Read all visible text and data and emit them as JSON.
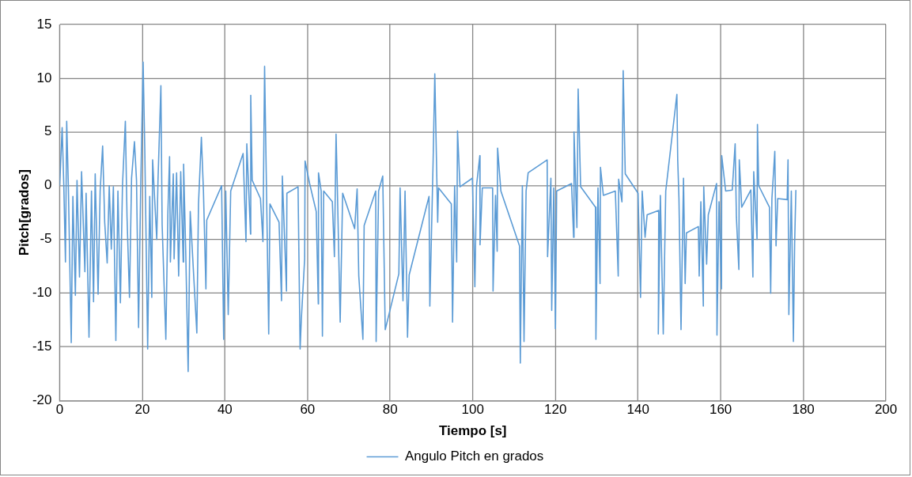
{
  "chart_data": {
    "type": "line",
    "xlabel": "Tiempo [s]",
    "ylabel": "Pitch[grados]",
    "xlim": [
      0,
      200
    ],
    "xticks": [
      0,
      20,
      40,
      60,
      80,
      100,
      120,
      140,
      160,
      180,
      200
    ],
    "ylim": [
      -20,
      15
    ],
    "yticks": [
      -20,
      -15,
      -10,
      -5,
      0,
      5,
      10,
      15
    ],
    "grid": true,
    "legend": "bottom",
    "marker": "none",
    "line_style": "solid",
    "series": [
      {
        "name": "Angulo Pitch en grados",
        "color": "#5b9bd5",
        "x": [
          0,
          0.6,
          1,
          1.4,
          1.7,
          2.1,
          2.8,
          3.2,
          3.8,
          4.2,
          4.8,
          5.3,
          6.1,
          6.4,
          7.1,
          7.7,
          8.2,
          8.6,
          9.3,
          9.8,
          10.4,
          10.9,
          11.5,
          12,
          12.5,
          13,
          13.6,
          14.1,
          14.7,
          15.2,
          15.9,
          16.3,
          16.9,
          17.4,
          18.1,
          18.6,
          19.1,
          19.6,
          20.2,
          20.6,
          21.3,
          21.8,
          22.3,
          22.5,
          23.5,
          23.8,
          24.5,
          24.8,
          25.7,
          26.2,
          26.6,
          26.8,
          27.5,
          27.7,
          28.3,
          28.8,
          29.3,
          29.9,
          30,
          30.5,
          31.1,
          31.6,
          32.5,
          33.2,
          33.6,
          34.3,
          34.8,
          35.4,
          35.6,
          39.2,
          39.7,
          40.2,
          40.8,
          41.4,
          44.4,
          45.1,
          45.3,
          46.2,
          46.25,
          46.6,
          48.6,
          49.2,
          49.6,
          50,
          50.6,
          50.9,
          53.1,
          53.7,
          53.9,
          54.9,
          55,
          57.7,
          58.2,
          58.5,
          59.3,
          59.4,
          60.5,
          62.1,
          62.6,
          62.65,
          63.3,
          63.6,
          63.9,
          66,
          66.5,
          66.9,
          67.2,
          67.9,
          68.5,
          71.4,
          72,
          72.4,
          73.4,
          73.7,
          76.5,
          76.6,
          77.2,
          78.2,
          78.8,
          82.1,
          82.4,
          83.1,
          83.6,
          84.2,
          84.6,
          89.4,
          89.6,
          90.4,
          90.8,
          91.5,
          91.7,
          94.8,
          95.1,
          95.6,
          96.1,
          96.3,
          96.9,
          99.9,
          100.5,
          100.9,
          101.7,
          101.75,
          102.3,
          104.8,
          104.9,
          105.5,
          105.9,
          106,
          106.8,
          111.3,
          111.5,
          112,
          112.4,
          112.9,
          113.4,
          118,
          118.1,
          118.9,
          119.1,
          119.6,
          120,
          120.3,
          123.9,
          124.4,
          124.5,
          125.2,
          125.5,
          126.1,
          129.7,
          129.8,
          130.3,
          130.8,
          130.9,
          131.6,
          134.5,
          135.2,
          135.3,
          136.1,
          136.4,
          136.9,
          140,
          140.6,
          141,
          141.7,
          142.2,
          145,
          144.9,
          145.4,
          146.1,
          146.7,
          149.4,
          149.6,
          149.9,
          150.4,
          151,
          151.4,
          151.7,
          154.6,
          154.8,
          155.2,
          155.8,
          155.9,
          156.6,
          157,
          159,
          159.1,
          159.6,
          160.2,
          160.25,
          161.2,
          162.8,
          163.5,
          163.8,
          164.4,
          164.5,
          165.1,
          167.3,
          167.8,
          168,
          168.8,
          168.9,
          169.2,
          171.8,
          172.1,
          172.4,
          173.1,
          173.4,
          173.8,
          176.1,
          176.3,
          176.5,
          177.1,
          177.6,
          177.9,
          178.2
        ],
        "values": [
          0,
          5.4,
          0,
          -7.1,
          6,
          0,
          -14.6,
          -1,
          -10.2,
          0.5,
          -8.5,
          1.3,
          -8,
          -0.7,
          -14.1,
          -0.5,
          -10.8,
          1.1,
          -10.1,
          -0.5,
          3.7,
          -3.4,
          -7.2,
          0,
          -5.9,
          -0.1,
          -14.4,
          -0.5,
          -10.9,
          0,
          6,
          -2.9,
          -10.4,
          0.7,
          4.1,
          0.5,
          -13.2,
          -0.5,
          11.5,
          3.4,
          -15.2,
          -1,
          -10.4,
          2.4,
          -5,
          0.5,
          9.3,
          -3.6,
          -14.3,
          -2.4,
          2.7,
          -7.1,
          1.1,
          -6.8,
          1.2,
          -8.4,
          1.3,
          -7.1,
          2,
          -5.9,
          -17.3,
          -2.4,
          -8.8,
          -13.7,
          -1.7,
          4.5,
          -0.5,
          -9.6,
          -3.2,
          0,
          -14.3,
          -0.5,
          -12,
          -0.5,
          3,
          -5.2,
          3.9,
          -4.5,
          8.4,
          0.5,
          -1.2,
          -5.2,
          11.1,
          1.2,
          -13.8,
          -1.7,
          -3.4,
          -10.7,
          0.9,
          -9.8,
          -0.7,
          -0.1,
          -15.2,
          -12.4,
          -6.8,
          2.3,
          0.2,
          -2.4,
          -11,
          1.2,
          -0.5,
          -14,
          -0.5,
          -1.5,
          -6.6,
          4.8,
          0,
          -12.7,
          -0.7,
          -4,
          -0.3,
          -8.4,
          -14.3,
          -3.7,
          -0.5,
          -14.5,
          -0.5,
          0.9,
          -13.4,
          -8.2,
          -0.2,
          -10.7,
          -0.5,
          -14.1,
          -8.3,
          -1,
          -11.2,
          2.4,
          10.4,
          -3.4,
          -0.2,
          -1.7,
          -12.7,
          0,
          -7.1,
          5.1,
          -0.1,
          0.7,
          -9.4,
          0,
          2.8,
          -5.5,
          -0.2,
          -0.2,
          -9.8,
          -0.9,
          -6.1,
          3.5,
          -0.5,
          -5.6,
          -16.5,
          0,
          -14.5,
          -0.5,
          1.2,
          2.4,
          -6.6,
          0.7,
          -11.6,
          -0.2,
          -13.3,
          -0.5,
          0.2,
          -4.8,
          5,
          -3.9,
          9,
          -0.1,
          -2,
          -14.3,
          -0.2,
          -9.1,
          1.7,
          -0.9,
          -0.5,
          -8.4,
          0.6,
          -1.5,
          10.7,
          1.1,
          -0.7,
          -10.4,
          -0.5,
          -4.8,
          -2.7,
          -2.3,
          -13.8,
          -0.9,
          -13.8,
          -0.5,
          8.5,
          2.4,
          -1.2,
          -13.4,
          0.7,
          -9.1,
          -4.4,
          -3.8,
          -8.4,
          -1.5,
          -11.2,
          -0.1,
          -7.3,
          -2.7,
          0.2,
          -13.9,
          -1.5,
          -9.6,
          2.8,
          -0.5,
          -0.4,
          3.9,
          -2.9,
          -7.8,
          2.4,
          -2,
          -0.4,
          -8.5,
          1.3,
          -5,
          5.7,
          0,
          -2,
          -10,
          -1.2,
          3.2,
          -5.6,
          -1.2,
          -1.3,
          2.4,
          -12,
          -0.5,
          -14.5,
          -5.4,
          -0.4
        ]
      }
    ]
  }
}
